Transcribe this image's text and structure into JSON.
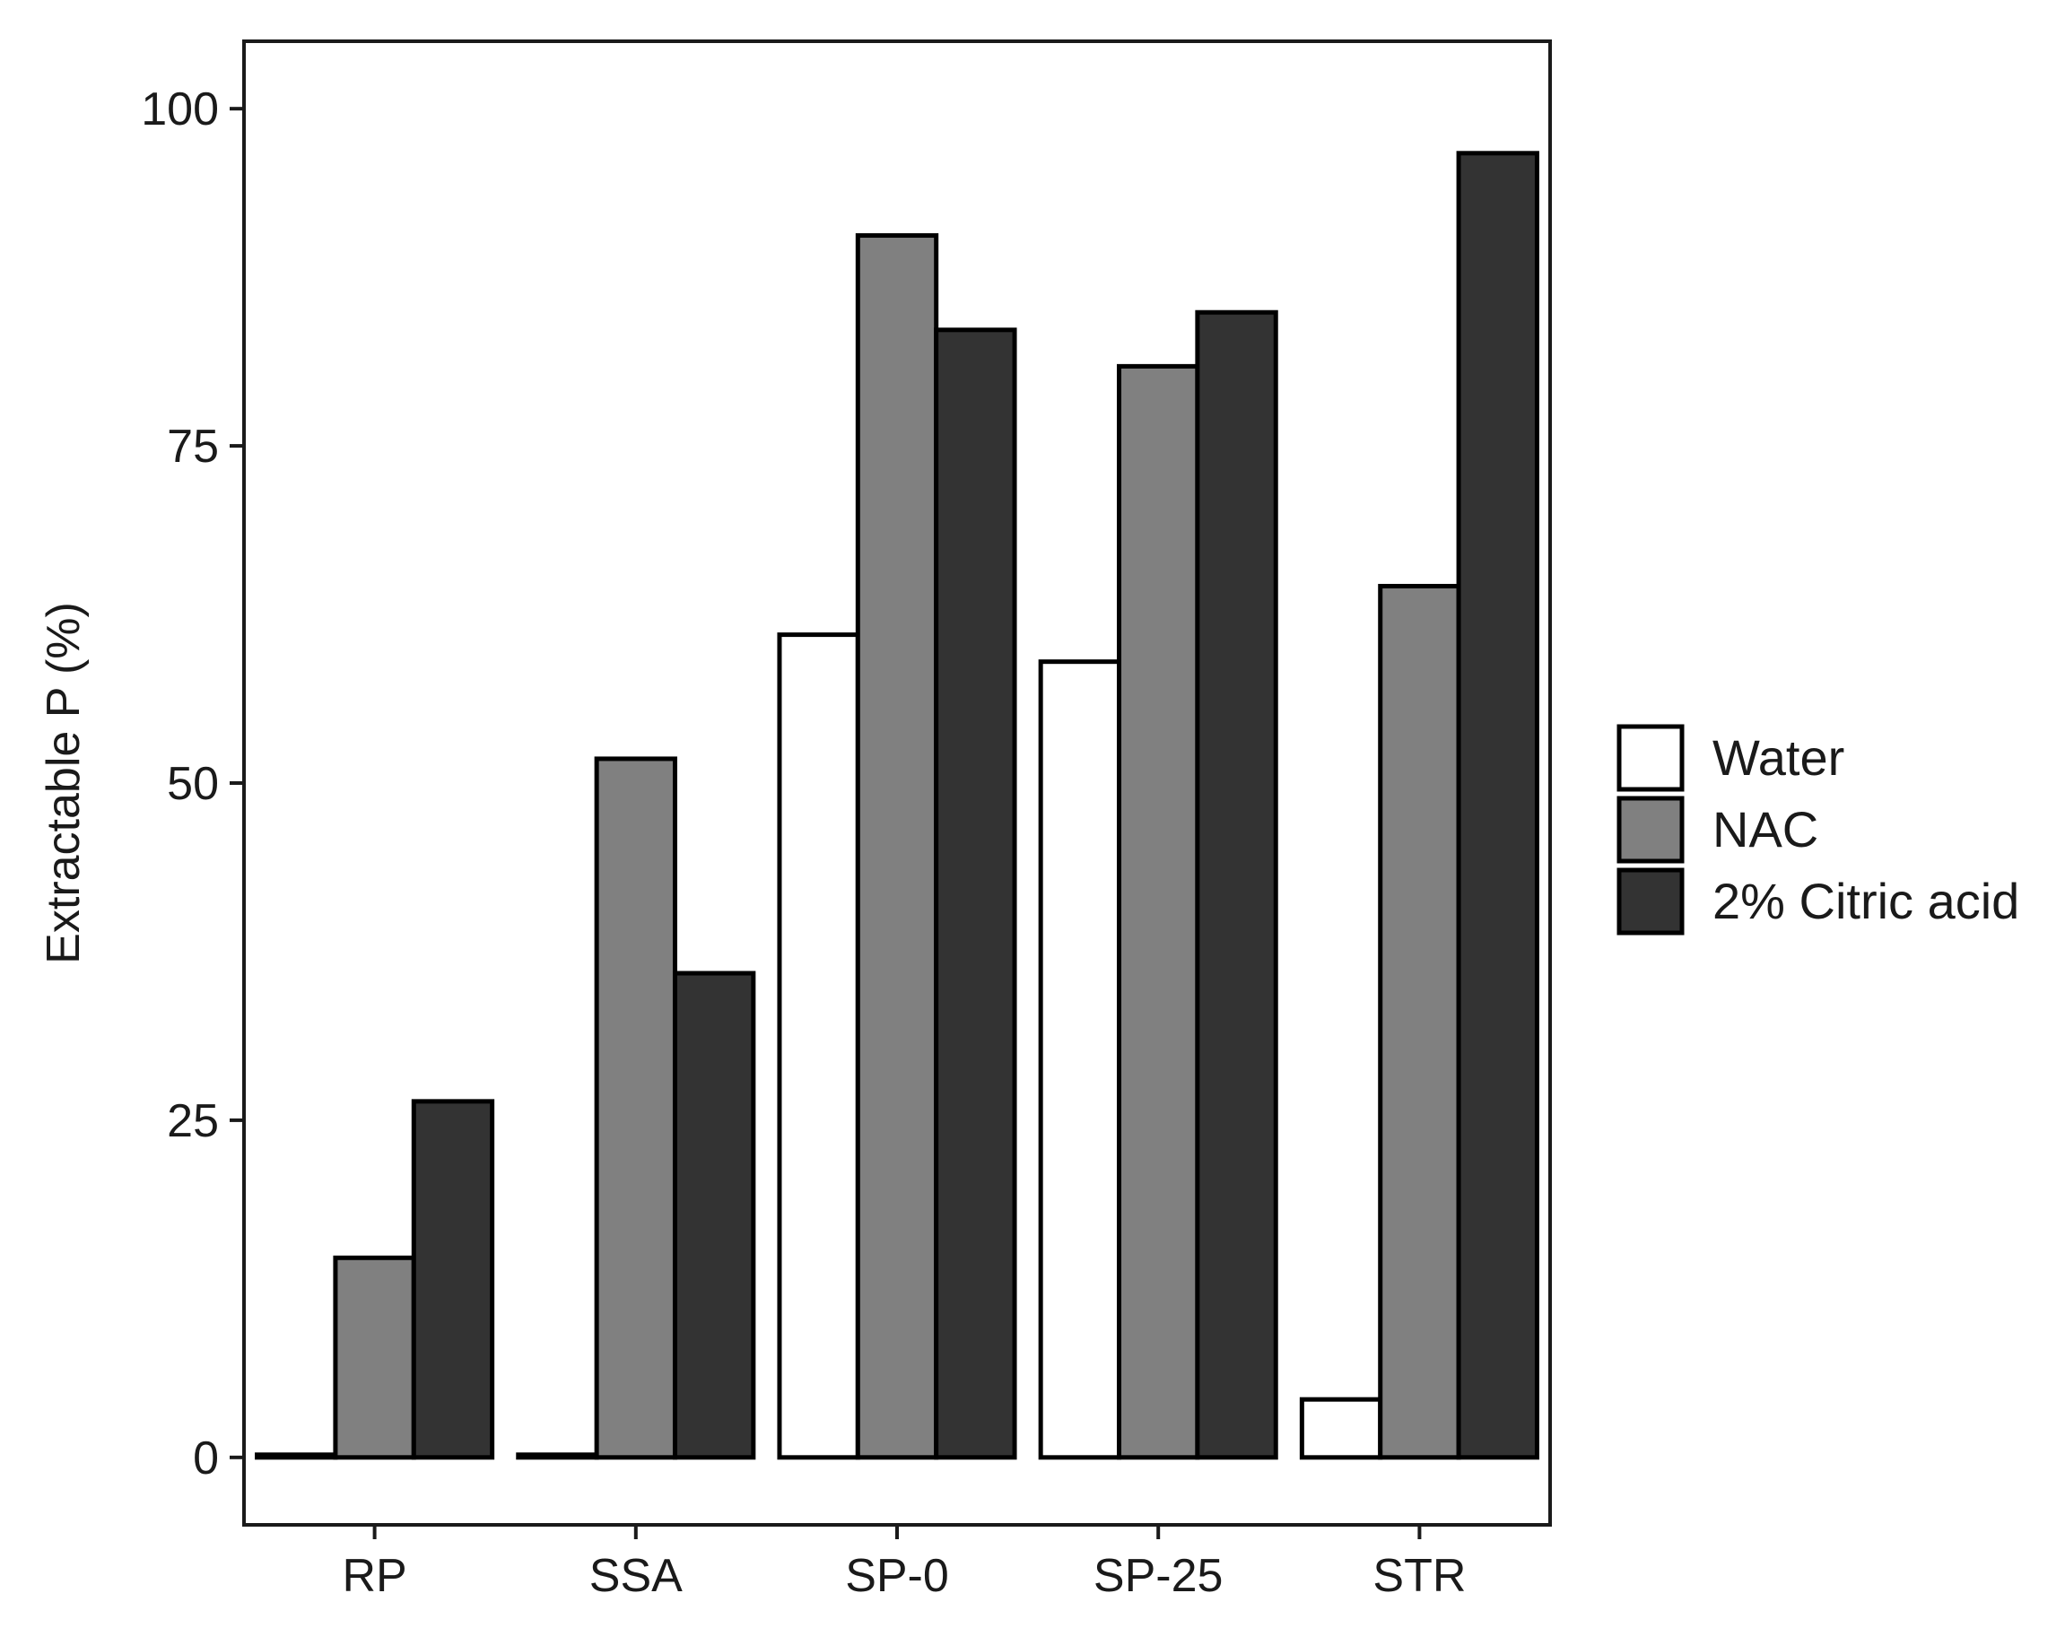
{
  "chart_data": {
    "type": "bar",
    "title": "",
    "xlabel": "",
    "ylabel": "Extractable P (%)",
    "categories": [
      "RP",
      "SSA",
      "SP-0",
      "SP-25",
      "STR"
    ],
    "series": [
      {
        "name": "Water",
        "color": "#ffffff",
        "values": [
          0.2,
          0.2,
          61,
          59,
          4.3
        ]
      },
      {
        "name": "NAC",
        "color": "#808080",
        "values": [
          14.8,
          51.8,
          90.6,
          80.9,
          64.6
        ]
      },
      {
        "name": "2% Citric acid",
        "color": "#333333",
        "values": [
          26.4,
          35.9,
          83.6,
          84.9,
          96.7
        ]
      }
    ],
    "ylim": [
      -5,
      105
    ],
    "yticks": [
      0,
      25,
      50,
      75,
      100
    ],
    "grid": false,
    "legend_position": "right"
  }
}
